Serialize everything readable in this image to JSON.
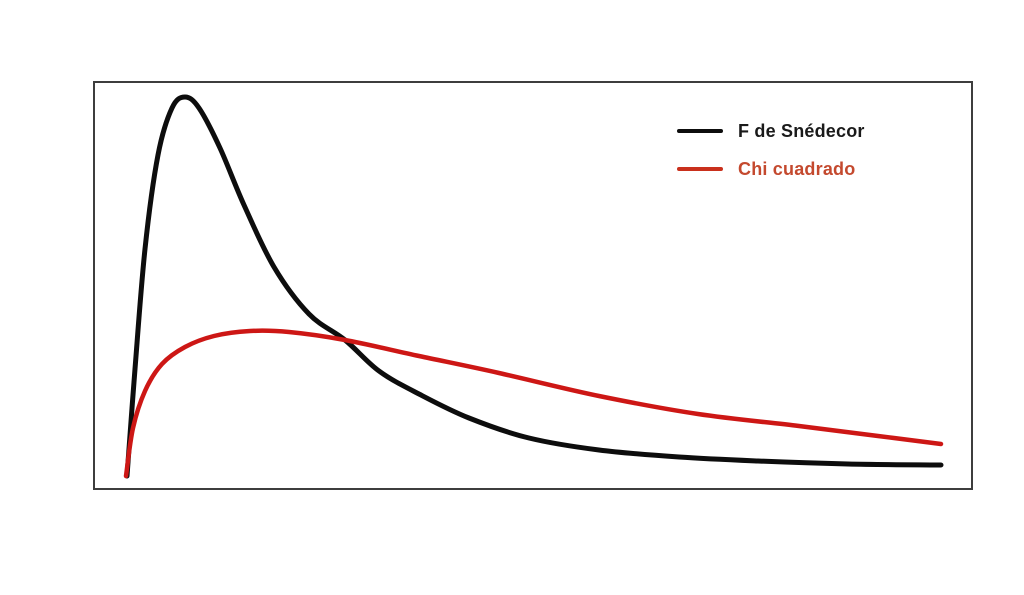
{
  "canvas": {
    "background": "#ffffff"
  },
  "colors": {
    "frame_border": "#3d3d3d",
    "f_snedecor": "#0d0d0d",
    "chi_cuadrado": "#cd1715",
    "chi_cuadrado_text": "#c4492e"
  },
  "legend": {
    "position": "top-right",
    "items": [
      {
        "label": "F de Snédecor",
        "line_color": "#0d0d0d",
        "text_color": "#1a1a1a"
      },
      {
        "label": "Chi cuadrado",
        "line_color": "#c9301c",
        "text_color": "#c4492e"
      }
    ]
  },
  "chart_data": {
    "type": "line",
    "title": "",
    "xlabel": "",
    "ylabel": "",
    "grid": false,
    "axes_visible": false,
    "tick_labels": [],
    "legend_position": "top-right",
    "note_units": "axes are unlabeled; point coordinates are normalized 0-1 fractions of the plot frame (x: left-to-right, y: bottom-to-top)",
    "series": [
      {
        "name": "F de Snédecor",
        "color": "#0d0d0d",
        "stroke_width": 5,
        "peak_norm": [
          0.104,
          0.961
        ],
        "points_norm": [
          [
            0.039,
            0.034
          ],
          [
            0.048,
            0.297
          ],
          [
            0.059,
            0.589
          ],
          [
            0.074,
            0.82
          ],
          [
            0.09,
            0.934
          ],
          [
            0.104,
            0.961
          ],
          [
            0.121,
            0.934
          ],
          [
            0.144,
            0.837
          ],
          [
            0.172,
            0.698
          ],
          [
            0.206,
            0.545
          ],
          [
            0.246,
            0.431
          ],
          [
            0.286,
            0.367
          ],
          [
            0.325,
            0.292
          ],
          [
            0.371,
            0.234
          ],
          [
            0.427,
            0.175
          ],
          [
            0.495,
            0.127
          ],
          [
            0.575,
            0.097
          ],
          [
            0.666,
            0.08
          ],
          [
            0.756,
            0.071
          ],
          [
            0.858,
            0.063
          ],
          [
            0.964,
            0.061
          ]
        ]
      },
      {
        "name": "Chi cuadrado",
        "color": "#cd1715",
        "stroke_width": 4.5,
        "peak_norm": [
          0.178,
          0.389
        ],
        "points_norm": [
          [
            0.037,
            0.034
          ],
          [
            0.045,
            0.151
          ],
          [
            0.059,
            0.243
          ],
          [
            0.078,
            0.307
          ],
          [
            0.104,
            0.35
          ],
          [
            0.138,
            0.377
          ],
          [
            0.178,
            0.389
          ],
          [
            0.223,
            0.387
          ],
          [
            0.286,
            0.367
          ],
          [
            0.371,
            0.328
          ],
          [
            0.461,
            0.285
          ],
          [
            0.575,
            0.229
          ],
          [
            0.688,
            0.187
          ],
          [
            0.802,
            0.156
          ],
          [
            0.892,
            0.131
          ],
          [
            0.964,
            0.112
          ]
        ]
      }
    ],
    "crossing_point_norm": [
      0.286,
      0.367
    ]
  }
}
